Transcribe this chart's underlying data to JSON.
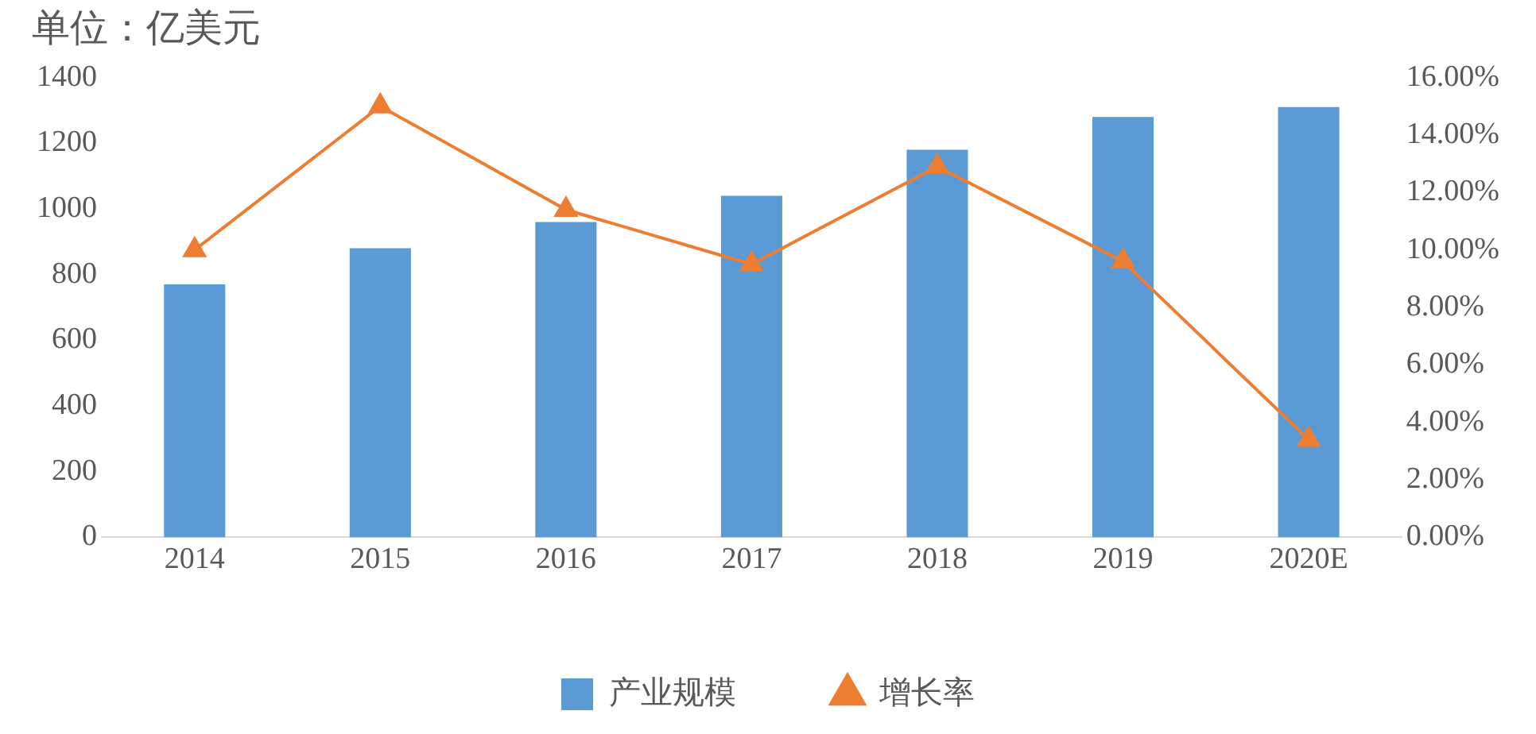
{
  "chart_data": {
    "type": "bar",
    "title": "单位：亿美元",
    "categories": [
      "2014",
      "2015",
      "2016",
      "2017",
      "2018",
      "2019",
      "2020E"
    ],
    "series": [
      {
        "name": "产业规模",
        "color": "#5b9bd5",
        "values": [
          770,
          880,
          960,
          1040,
          1180,
          1280,
          1310
        ]
      },
      {
        "name": "增长率",
        "type": "line",
        "axis": "y2",
        "color": "#ed7d31",
        "values": [
          10,
          15,
          11.4,
          9.5,
          12.9,
          9.6,
          3.4
        ]
      }
    ],
    "ylim": [
      0,
      1400
    ],
    "yticks": [
      0,
      200,
      400,
      600,
      800,
      1000,
      1200,
      1400
    ],
    "y2lim": [
      0,
      16
    ],
    "y2ticks": [
      {
        "value": 0,
        "label": "0.00%"
      },
      {
        "value": 2,
        "label": "2.00%"
      },
      {
        "value": 4,
        "label": "4.00%"
      },
      {
        "value": 6,
        "label": "6.00%"
      },
      {
        "value": 8,
        "label": "8.00%"
      },
      {
        "value": 10,
        "label": "10.00%"
      },
      {
        "value": 12,
        "label": "12.00%"
      },
      {
        "value": 14,
        "label": "14.00%"
      },
      {
        "value": 16,
        "label": "16.00%"
      }
    ],
    "grid": false,
    "legend": "bottom",
    "marker": "triangle",
    "line_style": "solid"
  }
}
